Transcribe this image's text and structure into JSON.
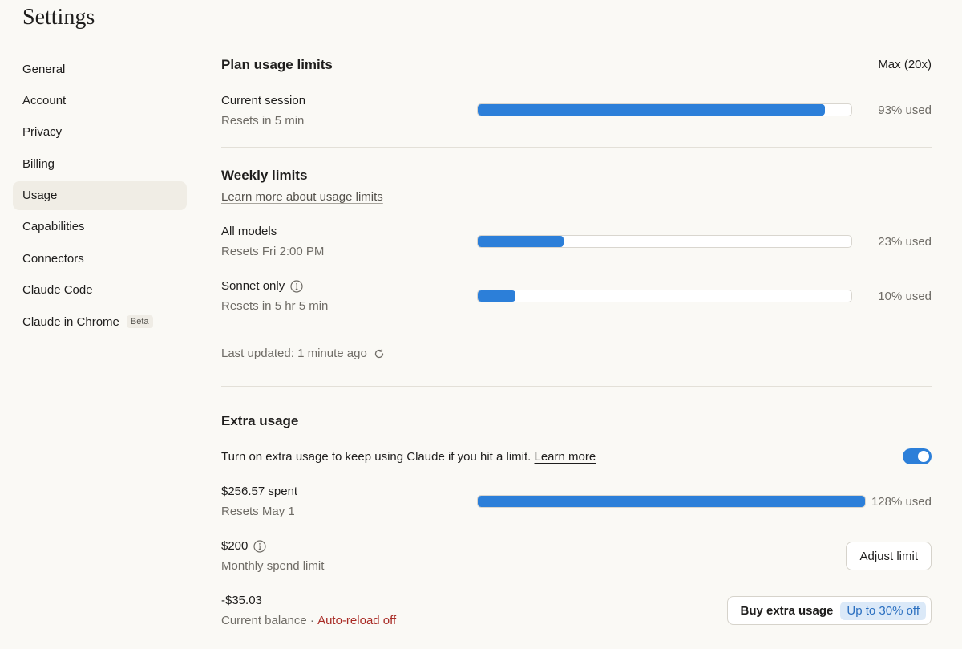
{
  "page": {
    "title": "Settings"
  },
  "sidebar": {
    "items": [
      {
        "label": "General"
      },
      {
        "label": "Account"
      },
      {
        "label": "Privacy"
      },
      {
        "label": "Billing"
      },
      {
        "label": "Usage",
        "active": true
      },
      {
        "label": "Capabilities"
      },
      {
        "label": "Connectors"
      },
      {
        "label": "Claude Code"
      },
      {
        "label": "Claude in Chrome",
        "badge": "Beta"
      }
    ]
  },
  "plan": {
    "heading": "Plan usage limits",
    "plan_name": "Max (20x)",
    "current_session": {
      "title": "Current session",
      "subtitle": "Resets in 5 min",
      "percent": 93,
      "pct_label": "93% used"
    }
  },
  "weekly": {
    "heading": "Weekly limits",
    "learn_more": "Learn more about usage limits",
    "all_models": {
      "title": "All models",
      "subtitle": "Resets Fri 2:00 PM",
      "percent": 23,
      "pct_label": "23% used"
    },
    "sonnet": {
      "title": "Sonnet only",
      "subtitle": "Resets in 5 hr 5 min",
      "percent": 10,
      "pct_label": "10% used"
    },
    "last_updated": "Last updated: 1 minute ago"
  },
  "extra": {
    "heading": "Extra usage",
    "description": "Turn on extra usage to keep using Claude if you hit a limit.",
    "learn_more": "Learn more",
    "toggle_on": true,
    "spent": {
      "title": "$256.57 spent",
      "subtitle": "Resets May 1",
      "percent": 100,
      "pct_label": "128% used"
    },
    "limit": {
      "amount": "$200",
      "label": "Monthly spend limit",
      "button": "Adjust limit"
    },
    "balance": {
      "amount": "-$35.03",
      "label": "Current balance",
      "separator": " · ",
      "auto_reload": "Auto-reload off",
      "button": "Buy extra usage",
      "promo": "Up to 30% off"
    }
  },
  "colors": {
    "accent": "#2c7fd9",
    "background": "#faf9f5",
    "active_item": "#f0ede5",
    "danger_link": "#a82a24"
  },
  "icons": {
    "info": "info-circle-icon",
    "refresh": "refresh-icon"
  }
}
